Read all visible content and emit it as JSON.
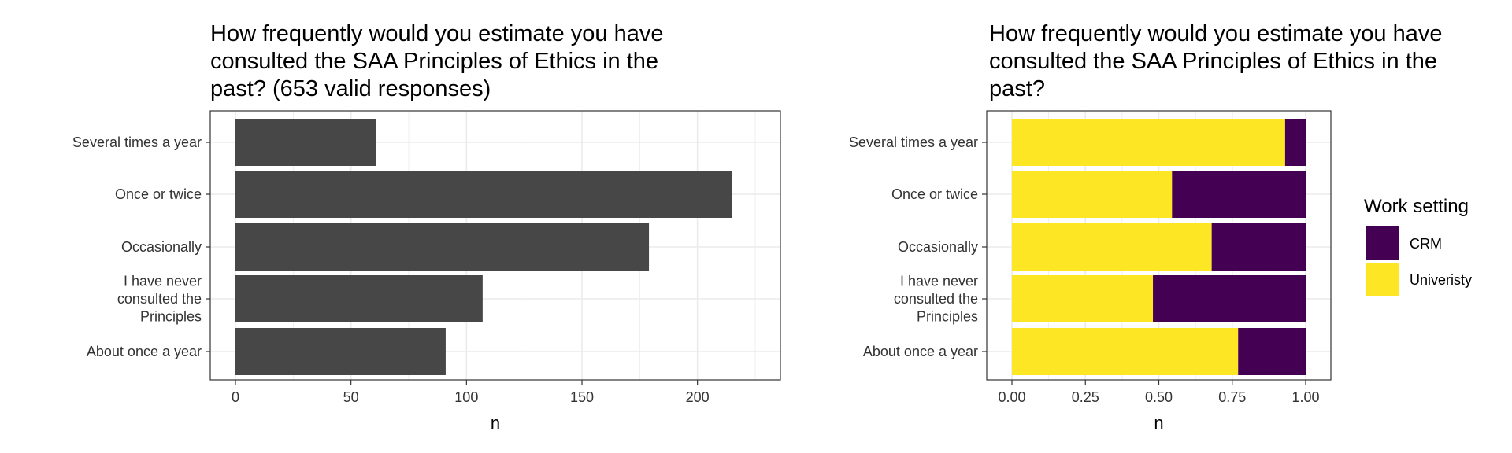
{
  "chart_data": [
    {
      "type": "bar",
      "orientation": "horizontal",
      "title": "How frequently would you estimate you have consulted the SAA Principles of Ethics in the past? (653 valid responses)",
      "xlabel": "n",
      "ylabel": "",
      "categories": [
        "Several times a year",
        "Once or twice",
        "Occasionally",
        "I have never consulted the Principles",
        "About once a year"
      ],
      "values": [
        61,
        215,
        179,
        107,
        91
      ],
      "xlim": [
        0,
        225
      ],
      "xticks": [
        "0",
        "50",
        "100",
        "150",
        "200"
      ],
      "grid": true,
      "bar_color": "#474747"
    },
    {
      "type": "bar",
      "orientation": "horizontal",
      "stacked": "fill",
      "title": "How frequently would you estimate you have consulted the SAA Principles of Ethics in the past?",
      "xlabel": "n",
      "ylabel": "",
      "categories": [
        "Several times a year",
        "Once or twice",
        "Occasionally",
        "I have never consulted the Principles",
        "About once a year"
      ],
      "series": [
        {
          "name": "Univeristy",
          "values": [
            0.93,
            0.545,
            0.68,
            0.48,
            0.77
          ],
          "color": "#FDE725"
        },
        {
          "name": "CRM",
          "values": [
            0.07,
            0.455,
            0.32,
            0.52,
            0.23
          ],
          "color": "#440154"
        }
      ],
      "xlim": [
        0,
        1
      ],
      "xticks": [
        "0.00",
        "0.25",
        "0.50",
        "0.75",
        "1.00"
      ],
      "grid": true,
      "legend": {
        "title": "Work setting",
        "placement": "right",
        "entries": [
          {
            "label": "CRM",
            "color": "#440154"
          },
          {
            "label": "Univeristy",
            "color": "#FDE725"
          }
        ]
      }
    }
  ],
  "left": {
    "title_lines": [
      "How frequently would you estimate you have",
      "consulted the SAA Principles of Ethics in the",
      "past? (653 valid responses)"
    ],
    "category_lines": [
      [
        "Several times a year"
      ],
      [
        "Once or twice"
      ],
      [
        "Occasionally"
      ],
      [
        "I have never",
        "consulted the",
        "Principles"
      ],
      [
        "About once a year"
      ]
    ]
  },
  "right": {
    "title_lines": [
      "How frequently would you estimate you have",
      "consulted the SAA Principles of Ethics in the",
      "past?"
    ],
    "category_lines": [
      [
        "Several times a year"
      ],
      [
        "Once or twice"
      ],
      [
        "Occasionally"
      ],
      [
        "I have never",
        "consulted the",
        "Principles"
      ],
      [
        "About once a year"
      ]
    ]
  }
}
